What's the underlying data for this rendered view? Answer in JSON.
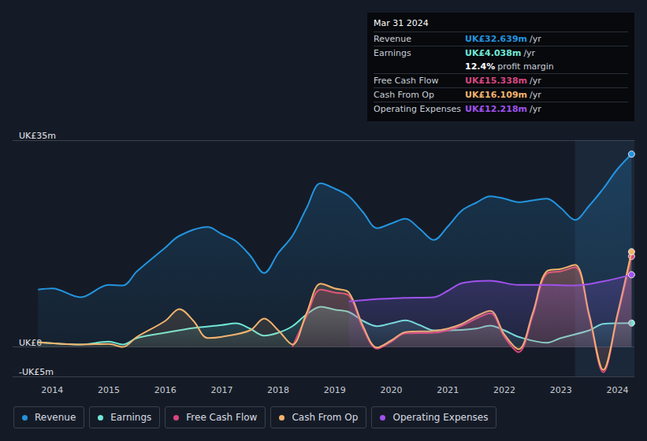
{
  "chart_data": {
    "type": "line",
    "xlim": [
      2013.3,
      2024.3
    ],
    "xticks": [
      2014,
      2015,
      2016,
      2017,
      2018,
      2019,
      2020,
      2021,
      2022,
      2023,
      2024
    ],
    "ylim": [
      -5,
      35
    ],
    "yticks": [
      {
        "value": -5,
        "label": "-UK£5m"
      },
      {
        "value": 0,
        "label": "UK£0"
      },
      {
        "value": 35,
        "label": "UK£35m"
      }
    ],
    "grid": true,
    "legend": "bottom-left",
    "shaded_x": [
      2023.25,
      2024.3
    ],
    "series": [
      {
        "name": "Revenue",
        "color": "#2394df",
        "x": [
          2013.75,
          2014.0,
          2014.5,
          2015.0,
          2015.25,
          2015.5,
          2016.0,
          2016.25,
          2016.75,
          2017.0,
          2017.25,
          2017.5,
          2017.75,
          2018.0,
          2018.25,
          2018.5,
          2018.75,
          2019.0,
          2019.25,
          2019.5,
          2019.75,
          2020.0,
          2020.25,
          2020.5,
          2020.75,
          2021.0,
          2021.25,
          2021.5,
          2021.75,
          2022.0,
          2022.25,
          2022.5,
          2022.75,
          2023.0,
          2023.25,
          2023.5,
          2023.75,
          2024.0,
          2024.25
        ],
        "values": [
          9.7,
          9.9,
          8.4,
          10.5,
          10.4,
          12.8,
          16.8,
          18.8,
          20.3,
          19.1,
          17.9,
          15.5,
          12.5,
          15.9,
          18.8,
          23.5,
          27.7,
          26.8,
          25.5,
          22.8,
          20.1,
          20.9,
          21.7,
          20.0,
          18.1,
          20.4,
          23.1,
          24.4,
          25.5,
          25.1,
          24.5,
          24.8,
          25.1,
          23.5,
          21.5,
          23.9,
          26.8,
          30.1,
          32.639
        ]
      },
      {
        "name": "Earnings",
        "color": "#71e7d6",
        "x": [
          2013.75,
          2014.5,
          2015.0,
          2015.25,
          2015.5,
          2016.0,
          2016.5,
          2017.0,
          2017.25,
          2017.5,
          2017.75,
          2018.0,
          2018.25,
          2018.5,
          2018.75,
          2019.0,
          2019.25,
          2019.5,
          2019.75,
          2020.0,
          2020.25,
          2020.5,
          2020.75,
          2021.0,
          2021.5,
          2021.75,
          2022.0,
          2022.25,
          2022.75,
          2023.0,
          2023.5,
          2023.75,
          2024.25
        ],
        "values": [
          0.8,
          0.4,
          0.9,
          0.4,
          1.5,
          2.4,
          3.2,
          3.7,
          4.0,
          3.1,
          1.9,
          2.4,
          3.5,
          5.5,
          6.8,
          6.3,
          5.9,
          4.4,
          3.5,
          4.0,
          4.5,
          3.7,
          2.8,
          2.8,
          3.1,
          3.6,
          2.8,
          1.7,
          0.7,
          1.5,
          2.8,
          3.9,
          4.038
        ]
      },
      {
        "name": "Free Cash Flow",
        "color": "#d9467f",
        "x": [
          2018.25,
          2018.5,
          2018.75,
          2019.0,
          2019.25,
          2019.5,
          2019.75,
          2020.0,
          2020.25,
          2020.75,
          2021.0,
          2021.25,
          2021.5,
          2021.75,
          2022.0,
          2022.25,
          2022.5,
          2022.75,
          2023.0,
          2023.25,
          2023.5,
          2023.75,
          2024.0,
          2024.25
        ],
        "values": [
          0,
          5.2,
          9.7,
          9.2,
          8.7,
          3.1,
          -0.3,
          0.9,
          2.3,
          2.4,
          2.8,
          3.6,
          4.8,
          5.7,
          1.7,
          -0.9,
          5.2,
          12.4,
          12.8,
          13.5,
          5.1,
          -4.3,
          5.1,
          15.338
        ]
      },
      {
        "name": "Cash From Op",
        "color": "#f2b36d",
        "x": [
          2013.75,
          2014.5,
          2015.0,
          2015.25,
          2015.5,
          2016.0,
          2016.25,
          2016.5,
          2016.75,
          2017.0,
          2017.5,
          2017.75,
          2018.0,
          2018.25,
          2018.5,
          2018.75,
          2019.0,
          2019.25,
          2019.5,
          2019.75,
          2020.0,
          2020.25,
          2020.75,
          2021.0,
          2021.25,
          2021.5,
          2021.75,
          2022.0,
          2022.25,
          2022.5,
          2022.75,
          2023.0,
          2023.25,
          2023.5,
          2023.75,
          2024.0,
          2024.25
        ],
        "values": [
          0.8,
          0.4,
          0.5,
          0,
          1.7,
          4.4,
          6.4,
          4.4,
          1.5,
          1.7,
          2.8,
          4.8,
          2.8,
          0.4,
          5.7,
          10.7,
          9.9,
          9.2,
          3.5,
          -0.1,
          1.1,
          2.5,
          2.7,
          3.1,
          3.9,
          5.2,
          6.1,
          2.1,
          -0.4,
          5.7,
          12.8,
          13.2,
          13.9,
          5.5,
          -3.9,
          5.5,
          16.109
        ]
      },
      {
        "name": "Operating Expenses",
        "color": "#a052ec",
        "x": [
          2019.25,
          2019.75,
          2020.25,
          2020.75,
          2021.0,
          2021.25,
          2021.75,
          2022.25,
          2022.75,
          2023.25,
          2023.75,
          2024.25
        ],
        "values": [
          7.7,
          8.1,
          8.3,
          8.4,
          9.5,
          10.8,
          11.2,
          10.5,
          10.5,
          10.4,
          11.1,
          12.218
        ]
      }
    ],
    "annotations": {
      "title": "Mar 31 2024",
      "rows": [
        {
          "label": "Revenue",
          "value": "UK£32.639m",
          "suffix": "/yr"
        },
        {
          "label": "Earnings",
          "value": "UK£4.038m",
          "suffix": "/yr"
        },
        {
          "value": "12.4%",
          "suffix": "profit margin"
        },
        {
          "label": "Free Cash Flow",
          "value": "UK£15.338m",
          "suffix": "/yr"
        },
        {
          "label": "Cash From Op",
          "value": "UK£16.109m",
          "suffix": "/yr"
        },
        {
          "label": "Operating Expenses",
          "value": "UK£12.218m",
          "suffix": "/yr"
        }
      ]
    }
  }
}
